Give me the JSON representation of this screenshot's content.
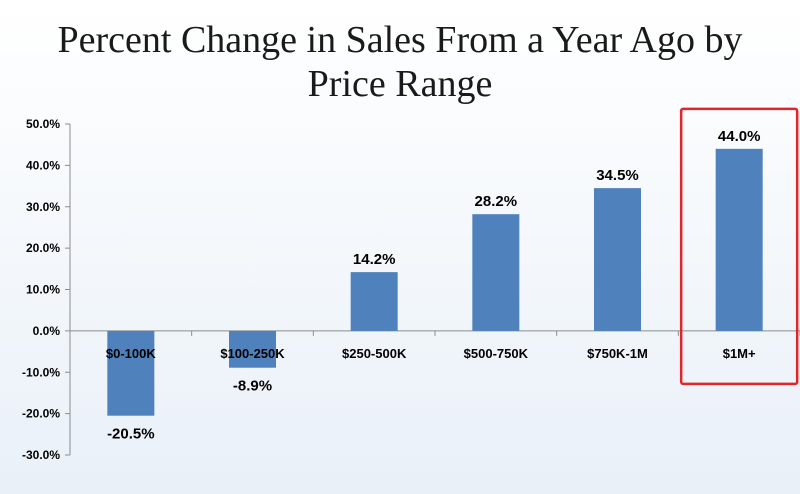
{
  "chart_data": {
    "type": "bar",
    "title": "Percent Change in Sales From a Year Ago by Price Range",
    "title_lines": [
      "Percent Change in Sales From a Year Ago by",
      "Price Range"
    ],
    "categories": [
      "$0-100K",
      "$100-250K",
      "$250-500K",
      "$500-750K",
      "$750K-1M",
      "$1M+"
    ],
    "values": [
      -20.5,
      -8.9,
      14.2,
      28.2,
      34.5,
      44.0
    ],
    "value_labels": [
      "-20.5%",
      "-8.9%",
      "14.2%",
      "28.2%",
      "34.5%",
      "44.0%"
    ],
    "ylim": [
      -30,
      50
    ],
    "yticks": [
      50,
      40,
      30,
      20,
      10,
      0,
      -10,
      -20,
      -30
    ],
    "ytick_labels": [
      "50.0%",
      "40.0%",
      "30.0%",
      "20.0%",
      "10.0%",
      "0.0%",
      "-10.0%",
      "-20.0%",
      "-30.0%"
    ],
    "xlabel": "",
    "ylabel": "",
    "grid": false,
    "highlighted_category": "$1M+"
  },
  "colors": {
    "bar": "#4f81bd",
    "axis": "#8c8c8c",
    "highlight_box": "#e0262a"
  }
}
